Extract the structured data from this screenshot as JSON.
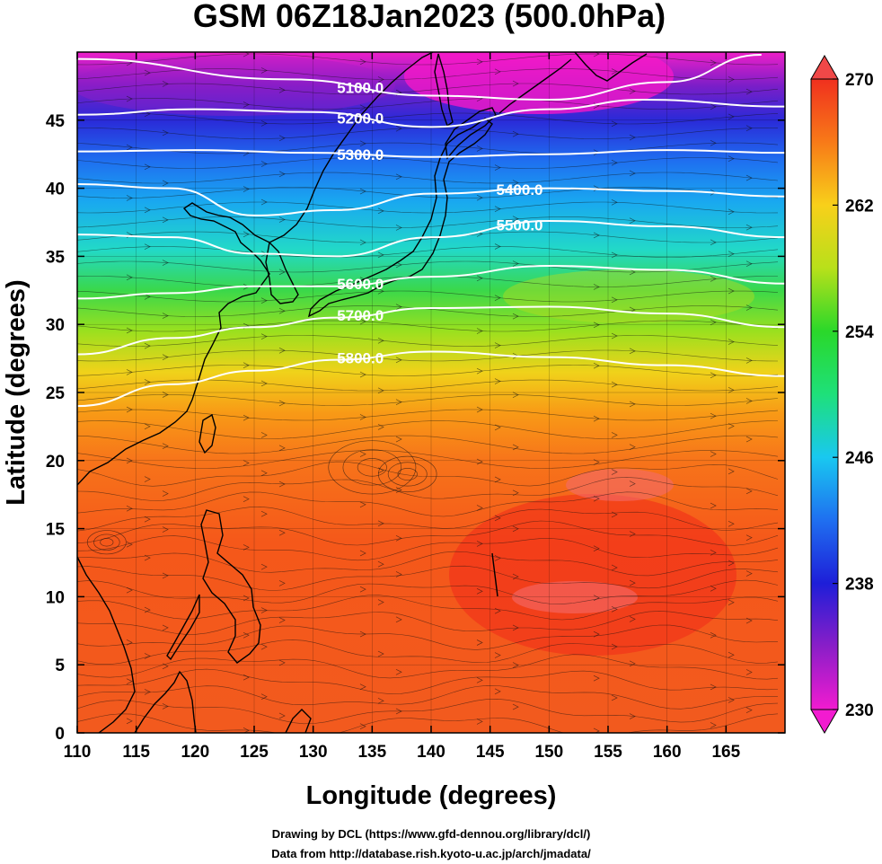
{
  "title": "GSM 06Z18Jan2023 (500.0hPa)",
  "x_axis": {
    "label": "Longitude (degrees)",
    "ticks": [
      "110",
      "115",
      "120",
      "125",
      "130",
      "135",
      "140",
      "145",
      "150",
      "155",
      "160",
      "165"
    ],
    "range": [
      110,
      170
    ]
  },
  "y_axis": {
    "label": "Latitude  (degrees)",
    "ticks": [
      "0",
      "5",
      "10",
      "15",
      "20",
      "25",
      "30",
      "35",
      "40",
      "45"
    ],
    "range": [
      0,
      50
    ]
  },
  "colorbar": {
    "ticks": [
      "230",
      "238",
      "246",
      "254",
      "262",
      "270"
    ],
    "range": [
      230,
      270
    ]
  },
  "contours": [
    {
      "label": "5100.0",
      "lat": [
        49.5,
        48.0,
        46.8,
        46.5,
        47.8,
        49.8
      ],
      "lon": [
        110,
        128,
        140,
        150,
        160,
        168
      ]
    },
    {
      "label": "5200.0",
      "lat": [
        45.4,
        45.8,
        45.6,
        44.5,
        45.8,
        46.5,
        46.0
      ],
      "lon": [
        110,
        120,
        130,
        140,
        150,
        158,
        170
      ]
    },
    {
      "label": "5300.0",
      "lat": [
        42.7,
        42.8,
        42.6,
        42.3,
        42.5,
        42.8,
        42.6
      ],
      "lon": [
        110,
        120,
        130,
        140,
        150,
        160,
        170
      ]
    },
    {
      "label": "5400.0",
      "lat": [
        40.3,
        40.0,
        38.0,
        38.4,
        39.6,
        40.0,
        39.8,
        39.4
      ],
      "lon": [
        110,
        118,
        125,
        132,
        140,
        150,
        160,
        170
      ]
    },
    {
      "label": "5500.0",
      "lat": [
        36.6,
        36.4,
        35.2,
        35.0,
        36.4,
        37.6,
        37.2,
        36.4
      ],
      "lon": [
        110,
        118,
        125,
        132,
        140,
        150,
        160,
        170
      ]
    },
    {
      "label": "5600.0",
      "lat": [
        31.9,
        32.3,
        32.8,
        32.8,
        33.5,
        34.3,
        34.0,
        33.0
      ],
      "lon": [
        110,
        118,
        125,
        132,
        140,
        150,
        160,
        170
      ]
    },
    {
      "label": "5700.0",
      "lat": [
        27.8,
        29.0,
        29.8,
        30.5,
        31.2,
        31.3,
        30.8,
        29.8
      ],
      "lon": [
        110,
        118,
        125,
        132,
        140,
        150,
        160,
        170
      ]
    },
    {
      "label": "5800.0",
      "lat": [
        24.0,
        25.6,
        26.6,
        27.4,
        28.0,
        27.6,
        27.0,
        26.2
      ],
      "lon": [
        110,
        118,
        125,
        132,
        140,
        150,
        160,
        170
      ]
    }
  ],
  "credits": [
    "Drawing by DCL (https://www.gfd-dennou.org/library/dcl/)",
    "Data from http://database.rish.kyoto-u.ac.jp/arch/jmadata/"
  ]
}
